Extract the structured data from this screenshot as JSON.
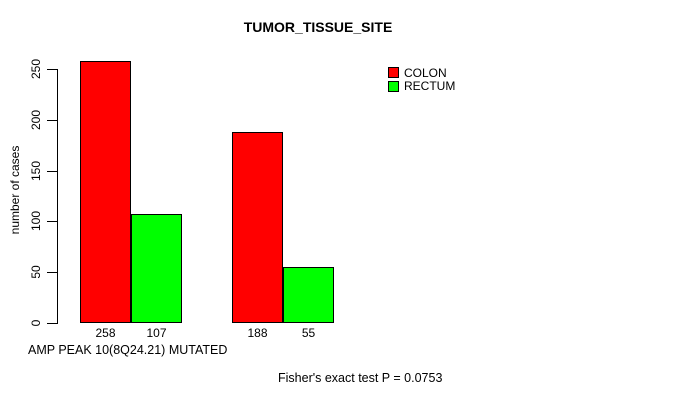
{
  "figure": {
    "title": "TUMOR_TISSUE_SITE",
    "y_axis": {
      "label": "number of cases"
    },
    "x_label": "AMP PEAK 10(8Q24.21) MUTATED",
    "footnote": "Fisher's exact test P = 0.0753",
    "background_color": "#ffffff",
    "axis_color": "#000000",
    "legend": {
      "items": [
        {
          "label": "COLON",
          "color": "#ff0000"
        },
        {
          "label": "RECTUM",
          "color": "#00ff00"
        }
      ]
    }
  },
  "chart_data": {
    "type": "bar",
    "title": "TUMOR_TISSUE_SITE",
    "xlabel": "AMP PEAK 10(8Q24.21) MUTATED",
    "ylabel": "number of cases",
    "ylim": [
      0,
      250
    ],
    "yticks": [
      0,
      50,
      100,
      150,
      200,
      250
    ],
    "grid": false,
    "legend_position": "top-right",
    "groups": 2,
    "series": [
      {
        "name": "COLON",
        "color": "#ff0000",
        "values": [
          258,
          188
        ]
      },
      {
        "name": "RECTUM",
        "color": "#00ff00",
        "values": [
          107,
          55
        ]
      }
    ],
    "bar_value_labels": [
      [
        "258",
        "188"
      ],
      [
        "107",
        "55"
      ]
    ],
    "footnote": "Fisher's exact test P = 0.0753"
  }
}
